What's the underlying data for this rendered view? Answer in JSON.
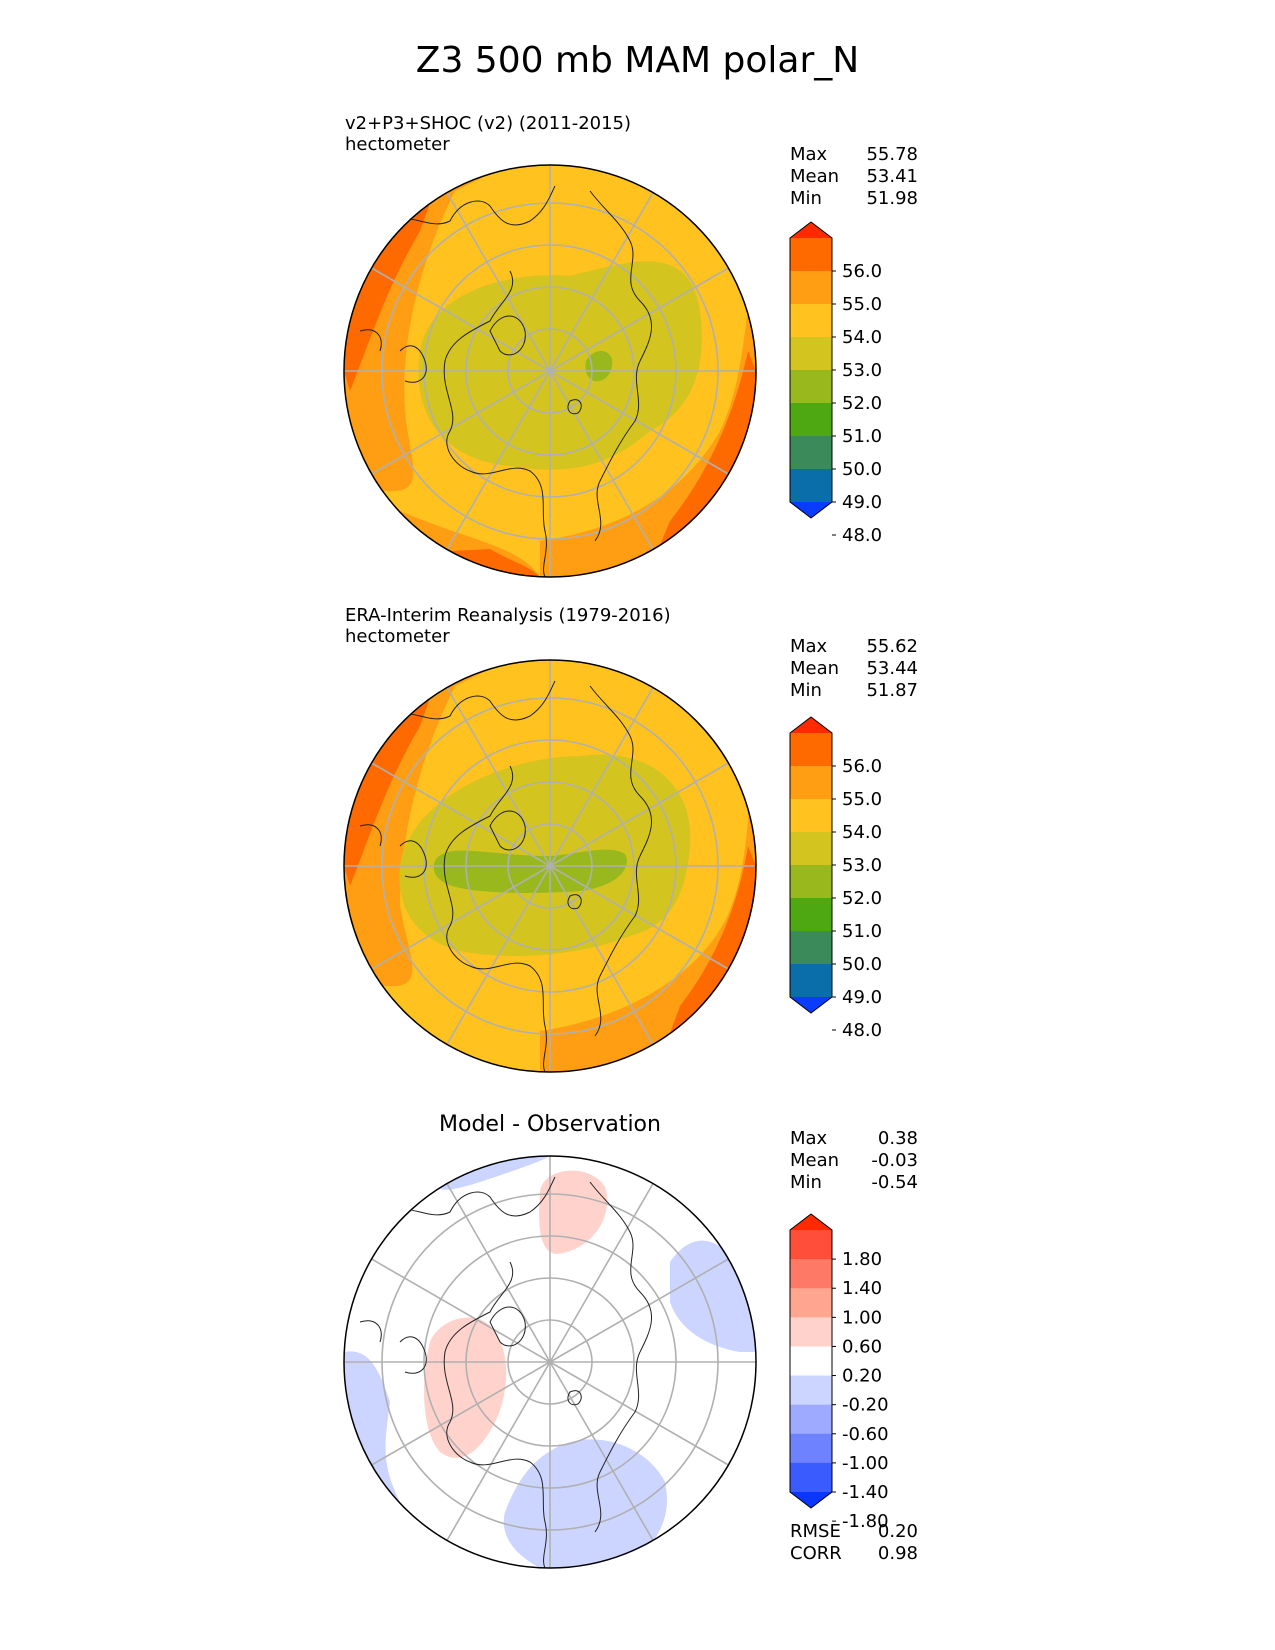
{
  "title": "Z3 500 mb MAM polar_N",
  "panels": [
    {
      "id": "test",
      "label_line1": "v2+P3+SHOC (v2) (2011-2015)",
      "label_line2": "hectometer",
      "stats": [
        {
          "label": "Max",
          "value": "55.78"
        },
        {
          "label": "Mean",
          "value": "53.41"
        },
        {
          "label": "Min",
          "value": "51.98"
        }
      ]
    },
    {
      "id": "ref",
      "label_line1": "ERA-Interim Reanalysis (1979-2016)",
      "label_line2": "hectometer",
      "stats": [
        {
          "label": "Max",
          "value": "55.62"
        },
        {
          "label": "Mean",
          "value": "53.44"
        },
        {
          "label": "Min",
          "value": "51.87"
        }
      ]
    },
    {
      "id": "diff",
      "title": "Model - Observation",
      "stats": [
        {
          "label": "Max",
          "value": "0.38"
        },
        {
          "label": "Mean",
          "value": "-0.03"
        },
        {
          "label": "Min",
          "value": "-0.54"
        }
      ],
      "metrics": [
        {
          "label": "RMSE",
          "value": "0.20"
        },
        {
          "label": "CORR",
          "value": "0.98"
        }
      ]
    }
  ],
  "chart_data": [
    {
      "type": "heatmap",
      "projection": "north-polar-stereographic",
      "variable": "Z3 500 mb",
      "units": "hectometer",
      "colorbar": {
        "levels": [
          48.0,
          49.0,
          50.0,
          51.0,
          52.0,
          53.0,
          54.0,
          55.0,
          56.0
        ],
        "tick_labels": [
          "56.0",
          "55.0",
          "54.0",
          "53.0",
          "52.0",
          "51.0",
          "50.0",
          "49.0",
          "48.0"
        ],
        "colors_top_to_bottom": [
          "#ff2a00",
          "#ff6a00",
          "#ff9e12",
          "#ffc21f",
          "#d4c41f",
          "#98b81e",
          "#4ea812",
          "#3a8a5a",
          "#0a6ea8",
          "#0a3cff"
        ],
        "extend": "both"
      },
      "field_bands": [
        {
          "level": "52-53",
          "color": "#d4c41f"
        },
        {
          "level": "51-52",
          "color": "#98b81e"
        },
        {
          "level": "53-54",
          "color": "#ffc21f"
        },
        {
          "level": "54-55",
          "color": "#ff9e12"
        },
        {
          "level": "55-56",
          "color": "#ff6a00"
        }
      ]
    },
    {
      "type": "heatmap",
      "projection": "north-polar-stereographic",
      "variable": "Z3 500 mb",
      "units": "hectometer",
      "colorbar": {
        "levels": [
          48.0,
          49.0,
          50.0,
          51.0,
          52.0,
          53.0,
          54.0,
          55.0,
          56.0
        ],
        "tick_labels": [
          "56.0",
          "55.0",
          "54.0",
          "53.0",
          "52.0",
          "51.0",
          "50.0",
          "49.0",
          "48.0"
        ],
        "colors_top_to_bottom": [
          "#ff2a00",
          "#ff6a00",
          "#ff9e12",
          "#ffc21f",
          "#d4c41f",
          "#98b81e",
          "#4ea812",
          "#3a8a5a",
          "#0a6ea8",
          "#0a3cff"
        ],
        "extend": "both"
      },
      "field_bands": [
        {
          "level": "52-53",
          "color": "#d4c41f"
        },
        {
          "level": "51-52",
          "color": "#98b81e"
        },
        {
          "level": "53-54",
          "color": "#ffc21f"
        },
        {
          "level": "54-55",
          "color": "#ff9e12"
        },
        {
          "level": "55-56",
          "color": "#ff6a00"
        }
      ]
    },
    {
      "type": "heatmap",
      "projection": "north-polar-stereographic",
      "variable": "Model - Observation",
      "colorbar": {
        "levels": [
          -1.8,
          -1.4,
          -1.0,
          -0.6,
          -0.2,
          0.2,
          0.6,
          1.0,
          1.4,
          1.8
        ],
        "tick_labels": [
          "1.80",
          "1.40",
          "1.00",
          "0.60",
          "0.20",
          "-0.20",
          "-0.60",
          "-1.00",
          "-1.40",
          "-1.80"
        ],
        "colors_top_to_bottom": [
          "#ff2a00",
          "#ff4e3a",
          "#ff7a66",
          "#ffa590",
          "#ffd3cc",
          "#ffffff",
          "#ccd5ff",
          "#9eaaff",
          "#6e82ff",
          "#3a5cff",
          "#0a36ff"
        ],
        "extend": "both"
      },
      "field_bands": [
        {
          "level": "0.2-0.6",
          "color": "#ffd3cc"
        },
        {
          "level": "-0.6--0.2",
          "color": "#ccd5ff"
        }
      ]
    }
  ]
}
